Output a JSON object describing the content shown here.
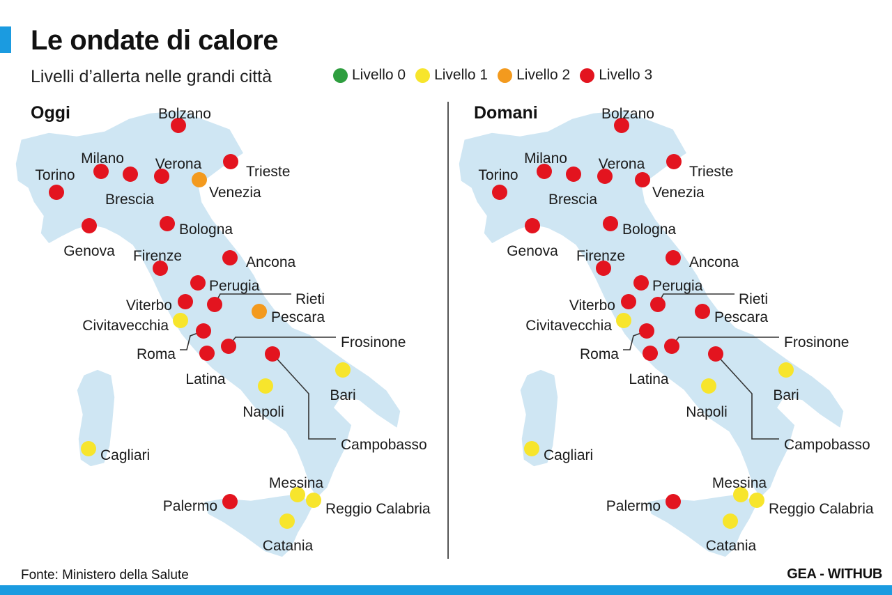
{
  "header": {
    "title": "Le ondate di calore",
    "subtitle": "Livelli d’allerta nelle grandi città"
  },
  "legend": [
    {
      "level": 0,
      "label": "Livello 0",
      "color": "#2e9e3f"
    },
    {
      "level": 1,
      "label": "Livello 1",
      "color": "#f7e52c"
    },
    {
      "level": 2,
      "label": "Livello 2",
      "color": "#f39a1e"
    },
    {
      "level": 3,
      "label": "Livello 3",
      "color": "#e3141f"
    }
  ],
  "map_style": {
    "land_color": "#cfe6f3",
    "leader_line_color": "#333333"
  },
  "panels": [
    {
      "title": "Oggi",
      "cities": [
        {
          "name": "Bolzano",
          "level": 3
        },
        {
          "name": "Milano",
          "level": 3
        },
        {
          "name": "Verona",
          "level": 3
        },
        {
          "name": "Trieste",
          "level": 3
        },
        {
          "name": "Torino",
          "level": 3
        },
        {
          "name": "Brescia",
          "level": 3
        },
        {
          "name": "Venezia",
          "level": 2
        },
        {
          "name": "Genova",
          "level": 3
        },
        {
          "name": "Bologna",
          "level": 3
        },
        {
          "name": "Firenze",
          "level": 3
        },
        {
          "name": "Ancona",
          "level": 3
        },
        {
          "name": "Perugia",
          "level": 3
        },
        {
          "name": "Rieti",
          "level": 3
        },
        {
          "name": "Viterbo",
          "level": 3
        },
        {
          "name": "Pescara",
          "level": 2
        },
        {
          "name": "Civitavecchia",
          "level": 1
        },
        {
          "name": "Roma",
          "level": 3
        },
        {
          "name": "Frosinone",
          "level": 3
        },
        {
          "name": "Latina",
          "level": 3
        },
        {
          "name": "Campobasso",
          "level": 3
        },
        {
          "name": "Bari",
          "level": 1
        },
        {
          "name": "Napoli",
          "level": 1
        },
        {
          "name": "Cagliari",
          "level": 1
        },
        {
          "name": "Messina",
          "level": 1
        },
        {
          "name": "Palermo",
          "level": 3
        },
        {
          "name": "Reggio Calabria",
          "level": 1
        },
        {
          "name": "Catania",
          "level": 1
        }
      ]
    },
    {
      "title": "Domani",
      "cities": [
        {
          "name": "Bolzano",
          "level": 3
        },
        {
          "name": "Milano",
          "level": 3
        },
        {
          "name": "Verona",
          "level": 3
        },
        {
          "name": "Trieste",
          "level": 3
        },
        {
          "name": "Torino",
          "level": 3
        },
        {
          "name": "Brescia",
          "level": 3
        },
        {
          "name": "Venezia",
          "level": 3
        },
        {
          "name": "Genova",
          "level": 3
        },
        {
          "name": "Bologna",
          "level": 3
        },
        {
          "name": "Firenze",
          "level": 3
        },
        {
          "name": "Ancona",
          "level": 3
        },
        {
          "name": "Perugia",
          "level": 3
        },
        {
          "name": "Rieti",
          "level": 3
        },
        {
          "name": "Viterbo",
          "level": 3
        },
        {
          "name": "Pescara",
          "level": 3
        },
        {
          "name": "Civitavecchia",
          "level": 1
        },
        {
          "name": "Roma",
          "level": 3
        },
        {
          "name": "Frosinone",
          "level": 3
        },
        {
          "name": "Latina",
          "level": 3
        },
        {
          "name": "Campobasso",
          "level": 3
        },
        {
          "name": "Bari",
          "level": 1
        },
        {
          "name": "Napoli",
          "level": 1
        },
        {
          "name": "Cagliari",
          "level": 1
        },
        {
          "name": "Messina",
          "level": 1
        },
        {
          "name": "Palermo",
          "level": 3
        },
        {
          "name": "Reggio Calabria",
          "level": 1
        },
        {
          "name": "Catania",
          "level": 1
        }
      ]
    }
  ],
  "footer": {
    "source": "Fonte: Ministero della Salute",
    "credit": "GEA - WITHUB"
  }
}
